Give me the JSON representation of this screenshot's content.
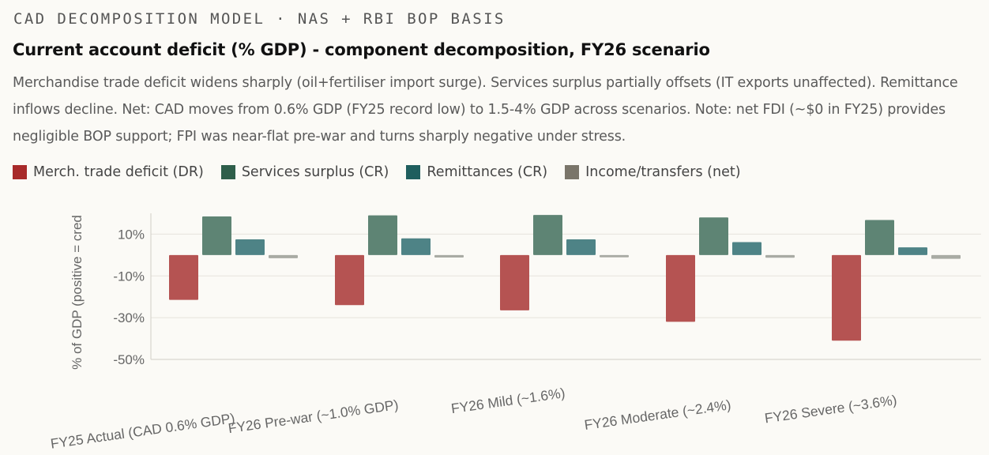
{
  "kicker": "CAD DECOMPOSITION MODEL · NAS + RBI BOP BASIS",
  "title": "Current account deficit (% GDP) - component decomposition, FY26 scenario",
  "subtitle": "Merchandise trade deficit widens sharply (oil+fertiliser import surge). Services surplus partially offsets (IT exports unaffected). Remittance inflows decline. Net: CAD moves from 0.6% GDP (FY25 record low) to 1.5-4% GDP across scenarios. Note: net FDI (~$0 in FY25) provides negligible BOP support; FPI was near-flat pre-war and turns sharply negative under stress.",
  "legend": [
    {
      "label": "Merch. trade deficit (DR)",
      "color": "#a82a2a"
    },
    {
      "label": "Services surplus (CR)",
      "color": "#2e5e4a"
    },
    {
      "label": "Remittances (CR)",
      "color": "#1f5e5e"
    },
    {
      "label": "Income/transfers (net)",
      "color": "#7a756a"
    }
  ],
  "chart_data": {
    "type": "bar",
    "title": "Current account deficit (% GDP) - component decomposition, FY26 scenario",
    "xlabel": "",
    "ylabel": "% of GDP (positive = cred",
    "ylim": [
      -50,
      20
    ],
    "yticks": [
      10,
      -10,
      -30,
      -50
    ],
    "ytick_labels": [
      "10%",
      "-10%",
      "-30%",
      "-50%"
    ],
    "categories": [
      "FY25 Actual (CAD 0.6% GDP)",
      "FY26 Pre-war (~1.0% GDP)",
      "FY26 Mild (~1.6%)",
      "FY26 Moderate (~2.4%)",
      "FY26 Severe (~3.6%)"
    ],
    "series": [
      {
        "name": "Merch. trade deficit (DR)",
        "color": "#b55352",
        "values": [
          -21.5,
          -24,
          -26.5,
          -32,
          -41
        ]
      },
      {
        "name": "Services surplus (CR)",
        "color": "#5e8474",
        "values": [
          18.5,
          19,
          19.2,
          18,
          16.8
        ]
      },
      {
        "name": "Remittances (CR)",
        "color": "#4e8386",
        "values": [
          7.5,
          8,
          7.5,
          6.2,
          3.7
        ]
      },
      {
        "name": "Income/transfers (net)",
        "color": "#a9aba4",
        "values": [
          -1.5,
          -1.2,
          -1.1,
          -1.3,
          -1.8
        ]
      }
    ]
  }
}
